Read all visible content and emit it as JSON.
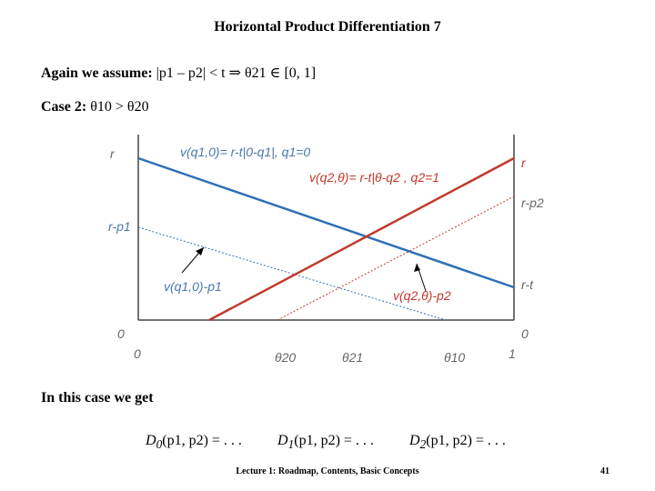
{
  "title": "Horizontal Product Differentiation 7",
  "assumption": {
    "lead": "Again we assume:",
    "formula": "|p1 – p2| < t ⇒ θ21 ∈ [0, 1]"
  },
  "case": {
    "label": "Case 2:",
    "formula": "θ10 > θ20"
  },
  "diagram": {
    "left_labels": {
      "r": "r",
      "r_p1": "r-p1",
      "zero": "0"
    },
    "right_labels": {
      "r": "r",
      "r_p2": "r-p2",
      "r_t": "r-t",
      "zero": "0"
    },
    "x_labels": {
      "zero": "0",
      "theta20": "θ20",
      "theta21": "θ21",
      "theta10": "θ10",
      "one": "1"
    },
    "annotations": {
      "v1": "v(q1,0)= r-t|0-q1|, q1=0",
      "v2": "v(q2,θ)= r-t|θ-q2 , q2=1",
      "v1_minus_p1": "v(q1,0)-p1",
      "v2_minus_p2": "v(q2,θ)-p2"
    },
    "colors": {
      "v1_line": "#2e6fb5",
      "v2_line": "#c0392b"
    }
  },
  "conclusion": "In this case we get",
  "demands": {
    "d0": {
      "name": "D",
      "sub": "0",
      "args": "(p1, p2) = . . ."
    },
    "d1": {
      "name": "D",
      "sub": "1",
      "args": "(p1, p2) = . . ."
    },
    "d2": {
      "name": "D",
      "sub": "2",
      "args": "(p1, p2) = . . ."
    }
  },
  "footer": "Lecture 1: Roadmap, Contents, Basic Concepts",
  "page_number": "41"
}
